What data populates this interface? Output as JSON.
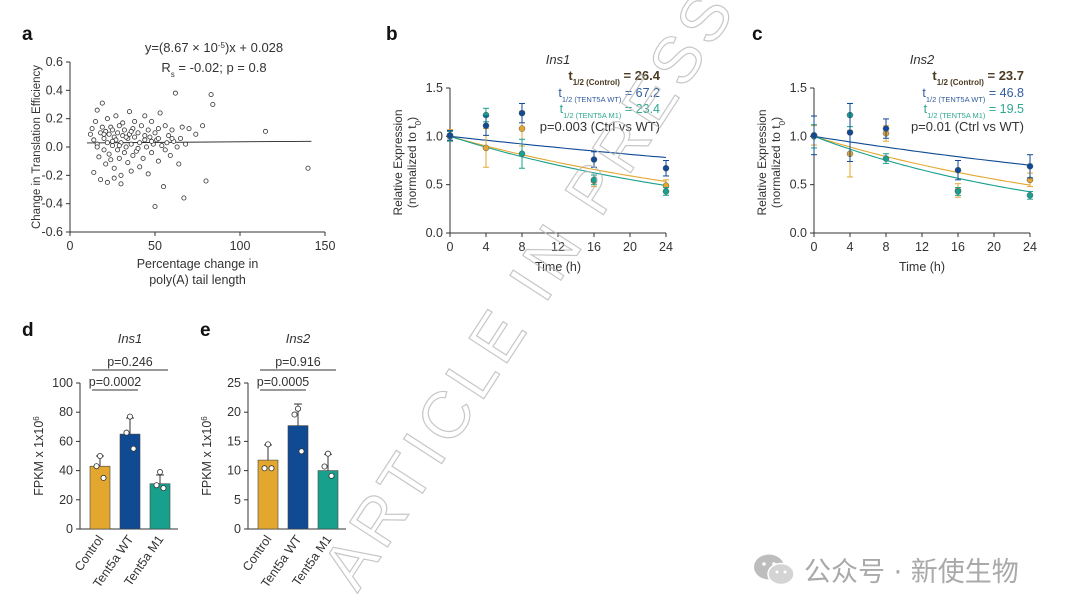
{
  "colors": {
    "control": "#E3A72F",
    "tent5a_wt": "#0F4A93",
    "tent5a_m1": "#17A08C",
    "wt_text": "#325E9E",
    "m1_text": "#2FA890",
    "control_text": "#4A3B22",
    "axis": "#333333",
    "watermark": "#B5B5B5"
  },
  "watermark": {
    "stamp": "ARTICLE IN PRESS",
    "brand": "公众号 · 新使生物",
    "brand_icon": "wechat-icon"
  },
  "chart_data": [
    {
      "panel": "a",
      "type": "scatter",
      "xlabel": [
        "Percentage change in",
        "poly(A) tail length"
      ],
      "ylabel": "Change in Translation Efficiency",
      "xlim": [
        0,
        150
      ],
      "ylim": [
        -0.6,
        0.6
      ],
      "xticks": [
        0,
        50,
        100,
        150
      ],
      "yticks": [
        -0.6,
        -0.4,
        -0.2,
        0.0,
        0.2,
        0.4,
        0.6
      ],
      "annotation": {
        "eq_prefix": "y=(8.67 × 10",
        "eq_exp": "-5",
        "eq_suffix": ")x + 0.028",
        "rs_main": "R",
        "rs_sub": "s",
        "rs_rest": " = -0.02; p = 0.8"
      },
      "fit": {
        "slope": 8.67e-05,
        "intercept": 0.028
      },
      "points": [
        [
          12,
          0.09
        ],
        [
          14,
          0.05
        ],
        [
          13,
          0.13
        ],
        [
          15,
          0.18
        ],
        [
          16,
          0.26
        ],
        [
          16,
          0.02
        ],
        [
          18,
          0.1
        ],
        [
          17,
          -0.07
        ],
        [
          19,
          0.31
        ],
        [
          19,
          0.14
        ],
        [
          20,
          -0.02
        ],
        [
          20,
          0.06
        ],
        [
          21,
          0.11
        ],
        [
          21,
          -0.12
        ],
        [
          22,
          0.03
        ],
        [
          22,
          0.2
        ],
        [
          23,
          -0.05
        ],
        [
          23,
          0.09
        ],
        [
          24,
          0.14
        ],
        [
          24,
          -0.09
        ],
        [
          25,
          0.01
        ],
        [
          25,
          0.12
        ],
        [
          26,
          0.07
        ],
        [
          26,
          -0.15
        ],
        [
          27,
          0.05
        ],
        [
          27,
          0.22
        ],
        [
          28,
          -0.02
        ],
        [
          28,
          0.1
        ],
        [
          29,
          0.15
        ],
        [
          29,
          -0.08
        ],
        [
          30,
          0.03
        ],
        [
          30,
          -0.2
        ],
        [
          31,
          0.08
        ],
        [
          31,
          0.17
        ],
        [
          32,
          -0.04
        ],
        [
          32,
          0.12
        ],
        [
          33,
          0.0
        ],
        [
          34,
          0.06
        ],
        [
          34,
          -0.11
        ],
        [
          35,
          0.09
        ],
        [
          35,
          0.25
        ],
        [
          36,
          0.02
        ],
        [
          36,
          -0.17
        ],
        [
          37,
          0.13
        ],
        [
          37,
          -0.06
        ],
        [
          38,
          0.07
        ],
        [
          38,
          0.18
        ],
        [
          39,
          -0.03
        ],
        [
          40,
          0.1
        ],
        [
          41,
          0.03
        ],
        [
          41,
          -0.14
        ],
        [
          42,
          0.15
        ],
        [
          43,
          -0.08
        ],
        [
          44,
          0.05
        ],
        [
          44,
          0.22
        ],
        [
          45,
          0.0
        ],
        [
          46,
          0.12
        ],
        [
          46,
          -0.19
        ],
        [
          47,
          0.07
        ],
        [
          48,
          -0.04
        ],
        [
          48,
          0.18
        ],
        [
          49,
          0.02
        ],
        [
          50,
          0.1
        ],
        [
          50,
          -0.42
        ],
        [
          51,
          0.05
        ],
        [
          52,
          0.13
        ],
        [
          52,
          -0.1
        ],
        [
          53,
          0.24
        ],
        [
          54,
          0.01
        ],
        [
          55,
          -0.28
        ],
        [
          56,
          0.15
        ],
        [
          57,
          0.03
        ],
        [
          58,
          0.08
        ],
        [
          59,
          -0.06
        ],
        [
          60,
          0.12
        ],
        [
          61,
          0.04
        ],
        [
          62,
          0.38
        ],
        [
          63,
          0.0
        ],
        [
          64,
          -0.12
        ],
        [
          65,
          0.06
        ],
        [
          66,
          0.14
        ],
        [
          67,
          -0.36
        ],
        [
          68,
          0.02
        ],
        [
          70,
          0.13
        ],
        [
          74,
          0.09
        ],
        [
          78,
          0.15
        ],
        [
          80,
          -0.24
        ],
        [
          83,
          0.37
        ],
        [
          84,
          0.3
        ],
        [
          115,
          0.11
        ],
        [
          140,
          -0.15
        ],
        [
          14,
          -0.18
        ],
        [
          18,
          -0.23
        ],
        [
          22,
          -0.25
        ],
        [
          26,
          -0.22
        ],
        [
          30,
          -0.26
        ],
        [
          16,
          0.0
        ],
        [
          20,
          0.09
        ],
        [
          25,
          0.04
        ],
        [
          29,
          0.01
        ],
        [
          33,
          0.07
        ],
        [
          36,
          0.11
        ],
        [
          40,
          -0.01
        ],
        [
          44,
          0.08
        ],
        [
          48,
          0.04
        ],
        [
          52,
          0.06
        ],
        [
          56,
          -0.02
        ],
        [
          60,
          0.06
        ]
      ]
    },
    {
      "panel": "b",
      "type": "line",
      "title": "Ins1",
      "xlabel": "Time (h)",
      "ylabel": [
        "Relative Expression",
        "(normalized to t"
      ],
      "ylabel_sub": "0",
      "xlim": [
        0,
        24
      ],
      "ylim": [
        0,
        1.5
      ],
      "xticks": [
        0,
        4,
        8,
        12,
        16,
        20,
        24
      ],
      "yticks": [
        0.0,
        0.5,
        1.0,
        1.5
      ],
      "halflife": {
        "control": {
          "main": "t",
          "sub": "1/2 (Control)",
          "val": " = 26.4"
        },
        "wt": {
          "main": "t",
          "sub": "1/2 (TENT5A WT)",
          "val": " = 67.2"
        },
        "m1": {
          "main": "t",
          "sub": "1/2 (TENT5A M1)",
          "val": " = 23.4"
        },
        "stat": "p=0.003 (Ctrl vs WT)"
      },
      "x": [
        0,
        4,
        8,
        16,
        24
      ],
      "series": [
        {
          "key": "control",
          "halflife": 26.4,
          "values": [
            1.01,
            0.88,
            1.08,
            0.54,
            0.49
          ],
          "err": [
            0.06,
            0.2,
            0.18,
            0.06,
            0.06
          ]
        },
        {
          "key": "tent5a_wt",
          "halflife": 67.2,
          "values": [
            1.01,
            1.11,
            1.24,
            0.76,
            0.67
          ],
          "err": [
            0.05,
            0.1,
            0.1,
            0.08,
            0.08
          ]
        },
        {
          "key": "tent5a_m1",
          "halflife": 23.4,
          "values": [
            1.0,
            1.22,
            0.82,
            0.55,
            0.43
          ],
          "err": [
            0.05,
            0.07,
            0.15,
            0.05,
            0.04
          ]
        }
      ]
    },
    {
      "panel": "c",
      "type": "line",
      "title": "Ins2",
      "xlabel": "Time (h)",
      "ylabel": [
        "Relative Expression",
        "(normalized to t"
      ],
      "ylabel_sub": "0",
      "xlim": [
        0,
        24
      ],
      "ylim": [
        0,
        1.5
      ],
      "xticks": [
        0,
        4,
        8,
        12,
        16,
        20,
        24
      ],
      "yticks": [
        0.0,
        0.5,
        1.0,
        1.5
      ],
      "halflife": {
        "control": {
          "main": "t",
          "sub": "1/2 (Control)",
          "val": " = 23.7"
        },
        "wt": {
          "main": "t",
          "sub": "1/2 (TENT5A WT)",
          "val": " = 46.8"
        },
        "m1": {
          "main": "t",
          "sub": "1/2 (TENT5A M1)",
          "val": " = 19.5"
        },
        "stat": "p=0.01 (Ctrl vs WT)"
      },
      "x": [
        0,
        4,
        8,
        16,
        24
      ],
      "series": [
        {
          "key": "control",
          "halflife": 23.7,
          "values": [
            1.01,
            0.82,
            1.03,
            0.44,
            0.55
          ],
          "err": [
            0.1,
            0.24,
            0.08,
            0.07,
            0.07
          ]
        },
        {
          "key": "tent5a_wt",
          "halflife": 46.8,
          "values": [
            1.01,
            1.04,
            1.08,
            0.65,
            0.69
          ],
          "err": [
            0.2,
            0.3,
            0.1,
            0.1,
            0.12
          ]
        },
        {
          "key": "tent5a_m1",
          "halflife": 19.5,
          "values": [
            1.0,
            1.22,
            0.77,
            0.43,
            0.39
          ],
          "err": [
            0.12,
            0.12,
            0.05,
            0.04,
            0.04
          ]
        }
      ]
    },
    {
      "panel": "d",
      "type": "bar",
      "title": "Ins1",
      "ylabel": "FPKM x 1x10",
      "ylabel_exp": "6",
      "ylim": [
        0,
        100
      ],
      "yticks": [
        0,
        20,
        40,
        60,
        80,
        100
      ],
      "categories": [
        "Control",
        "Tent5a WT",
        "Tent5a M1"
      ],
      "values": [
        43,
        65,
        31
      ],
      "err": [
        7,
        11,
        6
      ],
      "points": [
        [
          50,
          43,
          35
        ],
        [
          77,
          66,
          55
        ],
        [
          39,
          30,
          28
        ]
      ],
      "comparisons": [
        {
          "label": "p=0.0002",
          "from": 0,
          "to": 1
        },
        {
          "label": "p=0.246",
          "from": 0,
          "to": 2
        }
      ]
    },
    {
      "panel": "e",
      "type": "bar",
      "title": "Ins2",
      "ylabel": "FPKM x 1x10",
      "ylabel_exp": "6",
      "ylim": [
        0,
        25
      ],
      "yticks": [
        0,
        5,
        10,
        15,
        20,
        25
      ],
      "categories": [
        "Control",
        "Tent5a WT",
        "Tent5a M1"
      ],
      "values": [
        11.8,
        17.7,
        10.0
      ],
      "err": [
        2.6,
        3.7,
        2.8
      ],
      "points": [
        [
          14.5,
          10.4,
          10.4
        ],
        [
          20.6,
          19.6,
          13.3
        ],
        [
          12.9,
          10.7,
          9.1
        ]
      ],
      "comparisons": [
        {
          "label": "p=0.0005",
          "from": 0,
          "to": 1
        },
        {
          "label": "p=0.916",
          "from": 0,
          "to": 2
        }
      ]
    }
  ]
}
